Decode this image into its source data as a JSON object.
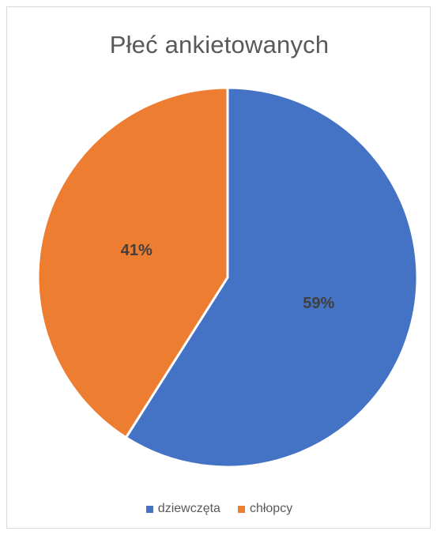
{
  "chart_data": {
    "type": "pie",
    "title": "Płeć ankietowanych",
    "categories": [
      "dziewczęta",
      "chłopcy"
    ],
    "values": [
      59,
      41
    ],
    "labels": [
      "59%",
      "41%"
    ],
    "colors": [
      "#4472C4",
      "#ED7D31"
    ],
    "start_angle": "12 o'clock, clockwise",
    "legend_position": "bottom"
  }
}
